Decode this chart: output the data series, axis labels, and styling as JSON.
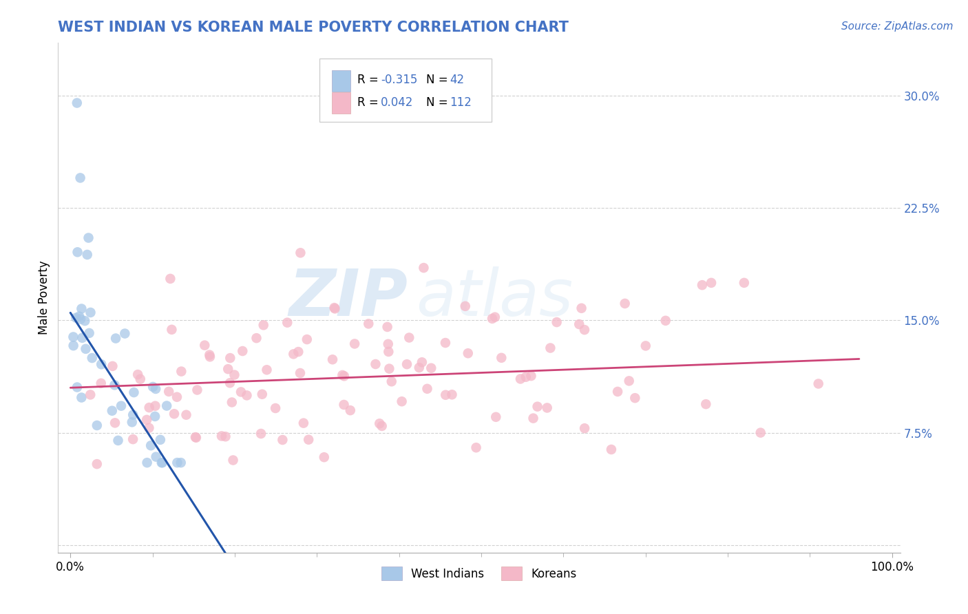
{
  "title": "WEST INDIAN VS KOREAN MALE POVERTY CORRELATION CHART",
  "source": "Source: ZipAtlas.com",
  "ylabel": "Male Poverty",
  "color_blue": "#a8c8e8",
  "color_pink": "#f4b8c8",
  "title_color": "#4472c4",
  "source_color": "#4472c4",
  "blue_line_color": "#2255aa",
  "pink_line_color": "#cc4477",
  "dash_color": "#aaaaaa",
  "watermark_color": "#dce8f4",
  "legend_box_color": "#e8e8e8",
  "ytick_color": "#4472c4",
  "grid_color": "#cccccc"
}
